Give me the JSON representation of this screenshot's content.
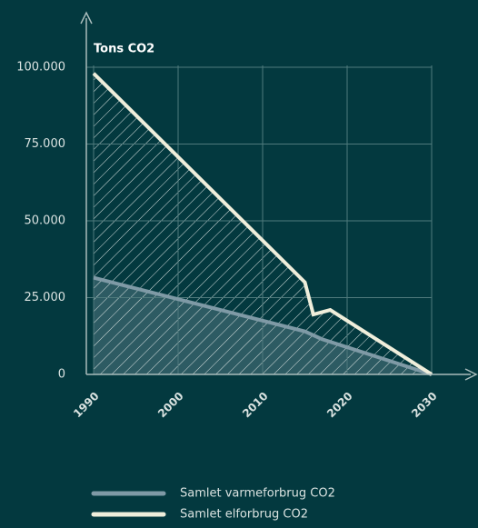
{
  "chart_data": {
    "type": "area",
    "y_label": "Tons CO2",
    "xlim": [
      1990,
      2030
    ],
    "xticks": [
      1990,
      2000,
      2010,
      2020,
      2030
    ],
    "ylim": [
      0,
      100000
    ],
    "yticks": [
      0,
      {
        "value": 25000,
        "label": "25.000"
      },
      {
        "value": 50000,
        "label": "50.000"
      },
      {
        "value": 75000,
        "label": "75.000"
      },
      {
        "value": 100000,
        "label": "100.000"
      }
    ],
    "grid": true,
    "series": [
      {
        "name": "Samlet varmeforbrug CO2",
        "color": "#7f9aa6",
        "x": [
          1990,
          2015,
          2017,
          2030
        ],
        "values": [
          31500,
          14000,
          11500,
          0
        ]
      },
      {
        "name": "Samlet elforbrug CO2",
        "color": "#efeedb",
        "x": [
          1990,
          2015,
          2016,
          2018,
          2030
        ],
        "values": [
          98000,
          30000,
          19500,
          21000,
          0
        ]
      }
    ]
  }
}
